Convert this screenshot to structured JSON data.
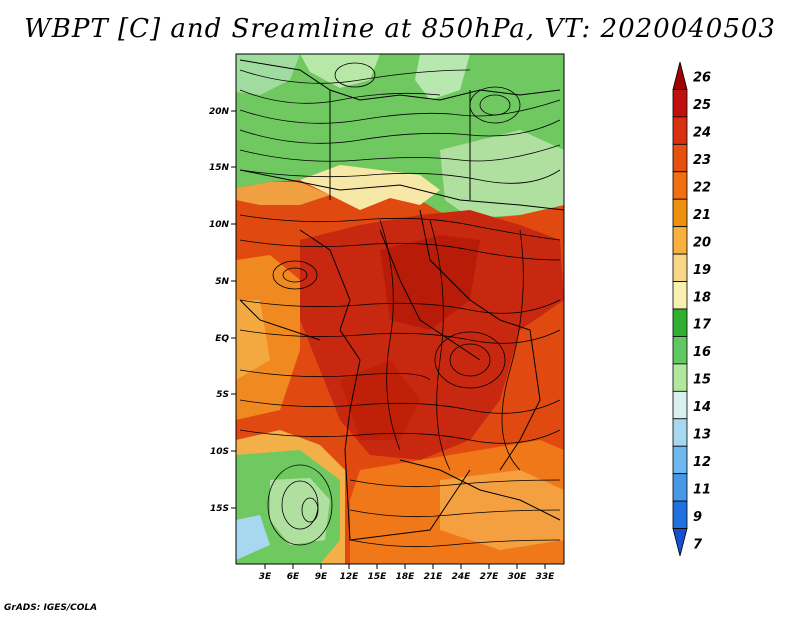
{
  "title": "WBPT [C] and Sreamline at 850hPa, VT: 2020040503",
  "credit": "GrADS: IGES/COLA",
  "lat_labels": [
    "20N",
    "15N",
    "10N",
    "5N",
    "EQ",
    "5S",
    "10S",
    "15S"
  ],
  "lon_labels": [
    "3E",
    "6E",
    "9E",
    "12E",
    "15E",
    "18E",
    "21E",
    "24E",
    "27E",
    "30E",
    "33E"
  ],
  "colorbar": {
    "labels": [
      "26",
      "25",
      "24",
      "23",
      "22",
      "21",
      "20",
      "19",
      "18",
      "17",
      "16",
      "15",
      "14",
      "13",
      "12",
      "11",
      "9",
      "7"
    ],
    "colors": [
      "#a00000",
      "#c01010",
      "#d83010",
      "#e85010",
      "#f07010",
      "#f09010",
      "#f8b040",
      "#f8d888",
      "#f8f0b0",
      "#30b030",
      "#60c860",
      "#b0e8a0",
      "#d8f0f0",
      "#a8d8f0",
      "#70b8f0",
      "#4898e8",
      "#2070e0",
      "#1450d0"
    ]
  }
}
